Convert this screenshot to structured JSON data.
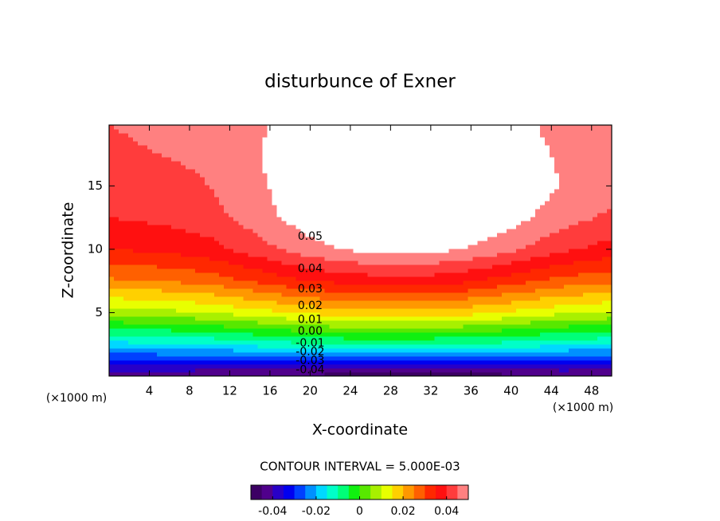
{
  "chart_data": {
    "type": "contour",
    "title": "disturbunce of Exner",
    "xlabel": "X-coordinate",
    "ylabel": "Z-coordinate",
    "x_unit": "(×1000 m)",
    "y_unit": "(×1000 m)",
    "xlim": [
      0,
      50
    ],
    "ylim": [
      0,
      19.8
    ],
    "xticks": [
      4,
      8,
      12,
      16,
      20,
      24,
      28,
      32,
      36,
      40,
      44,
      48
    ],
    "yticks": [
      5,
      10,
      15
    ],
    "x": [
      0,
      5,
      10,
      15,
      20,
      25,
      30,
      35,
      40,
      45,
      50
    ],
    "y": [
      0,
      2.5,
      5,
      7.5,
      10,
      12.5,
      15,
      17.5,
      19.8
    ],
    "z": [
      [
        -0.045,
        -0.045,
        -0.046,
        -0.047,
        -0.047,
        -0.048,
        -0.048,
        -0.048,
        -0.047,
        -0.046,
        -0.046
      ],
      [
        -0.017,
        -0.016,
        -0.015,
        -0.013,
        -0.011,
        -0.01,
        -0.01,
        -0.011,
        -0.012,
        -0.014,
        -0.015
      ],
      [
        0.007,
        0.008,
        0.01,
        0.013,
        0.016,
        0.018,
        0.018,
        0.017,
        0.014,
        0.011,
        0.009
      ],
      [
        0.024,
        0.025,
        0.027,
        0.031,
        0.035,
        0.037,
        0.038,
        0.036,
        0.032,
        0.028,
        0.026
      ],
      [
        0.035,
        0.036,
        0.038,
        0.043,
        0.048,
        0.051,
        0.052,
        0.05,
        0.046,
        0.041,
        0.038
      ],
      [
        0.04,
        0.041,
        0.043,
        0.048,
        0.053,
        0.057,
        0.058,
        0.056,
        0.052,
        0.047,
        0.044
      ],
      [
        0.044,
        0.043,
        0.045,
        0.049,
        0.055,
        0.059,
        0.06,
        0.058,
        0.054,
        0.05,
        0.047
      ],
      [
        0.044,
        0.045,
        0.046,
        0.05,
        0.056,
        0.06,
        0.06,
        0.058,
        0.054,
        0.049,
        0.046
      ],
      [
        0.045,
        0.046,
        0.046,
        0.049,
        0.055,
        0.058,
        0.058,
        0.056,
        0.052,
        0.048,
        0.045
      ]
    ],
    "contour_labels": [
      0.05,
      0.04,
      0.03,
      0.02,
      0.01,
      {
        "value": 0,
        "label": "0.00"
      },
      -0.01,
      -0.02,
      -0.03,
      -0.04
    ],
    "contour_interval": {
      "value": 0.005,
      "label": "CONTOUR INTERVAL = 5.000E-03"
    },
    "colorbar": {
      "lim": [
        -0.05,
        0.05
      ],
      "ticks": [
        -0.04,
        -0.02,
        0,
        0.02,
        0.04
      ],
      "colors": [
        "#3c0064",
        "#50008c",
        "#2800c8",
        "#0000f0",
        "#0040ff",
        "#0090ff",
        "#00d8ff",
        "#00ffc8",
        "#00ff78",
        "#10f010",
        "#58e800",
        "#a8f000",
        "#e8ff00",
        "#ffd000",
        "#ff9800",
        "#ff6000",
        "#ff2800",
        "#ff1010",
        "#ff3c3c",
        "#ff8080",
        "#ffffff"
      ]
    }
  }
}
